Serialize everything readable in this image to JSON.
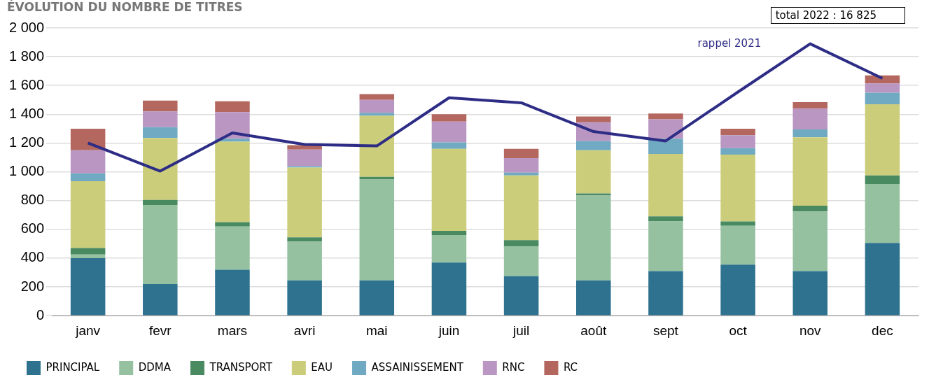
{
  "chart_data": {
    "type": "bar",
    "title": "ÉVOLUTION DU NOMBRE DE TITRES",
    "stacked": true,
    "categories": [
      "janv",
      "fevr",
      "mars",
      "avri",
      "mai",
      "juin",
      "juil",
      "août",
      "sept",
      "oct",
      "nov",
      "dec"
    ],
    "series": [
      {
        "name": "PRINCIPAL",
        "color": "#2e728f",
        "values": [
          400,
          220,
          320,
          245,
          245,
          370,
          275,
          245,
          310,
          355,
          310,
          505
        ]
      },
      {
        "name": "DDMA",
        "color": "#95c1a0",
        "values": [
          25,
          550,
          300,
          270,
          705,
          190,
          205,
          590,
          345,
          270,
          415,
          410
        ]
      },
      {
        "name": "TRANSPORT",
        "color": "#4a8a60",
        "values": [
          45,
          35,
          30,
          30,
          15,
          30,
          45,
          15,
          35,
          30,
          40,
          60
        ]
      },
      {
        "name": "EAU",
        "color": "#cccd7a",
        "values": [
          465,
          430,
          560,
          485,
          425,
          570,
          450,
          300,
          435,
          465,
          475,
          495
        ]
      },
      {
        "name": "ASSAINISSEMENT",
        "color": "#6fa9c2",
        "values": [
          55,
          75,
          20,
          10,
          20,
          45,
          20,
          65,
          105,
          45,
          55,
          80
        ]
      },
      {
        "name": "RNC",
        "color": "#ba96c2",
        "values": [
          160,
          110,
          185,
          115,
          90,
          145,
          100,
          130,
          135,
          90,
          145,
          65
        ]
      },
      {
        "name": "RC",
        "color": "#b3675f",
        "values": [
          150,
          75,
          75,
          30,
          40,
          50,
          65,
          40,
          40,
          45,
          45,
          55
        ]
      },
      {
        "name": "rappel 2021",
        "type": "line",
        "color": "#2e2d86",
        "values": [
          1200,
          1005,
          1270,
          1190,
          1180,
          1515,
          1480,
          1280,
          1215,
          1555,
          1890,
          1650
        ]
      }
    ],
    "ylim": [
      0,
      2000
    ],
    "yticks": [
      0,
      200,
      400,
      600,
      800,
      {
        "value": 1000,
        "label": "1 000"
      },
      {
        "value": 1200,
        "label": "1 200"
      },
      {
        "value": 1400,
        "label": "1 400"
      },
      {
        "value": 1600,
        "label": "1 600"
      },
      {
        "value": 1800,
        "label": "1 800"
      },
      {
        "value": 2000,
        "label": "2 000"
      }
    ],
    "grid": "y",
    "legend": "bottom",
    "marker": "none",
    "annotations": [
      "total 2022 : 16 825"
    ]
  }
}
